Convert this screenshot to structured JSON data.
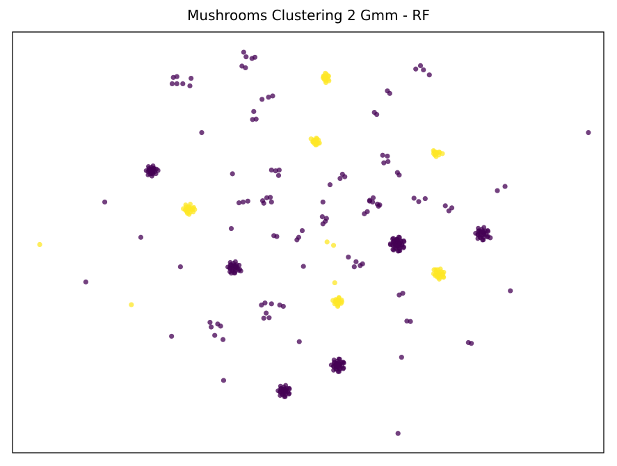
{
  "chart_data": {
    "type": "scatter",
    "title": "Mushrooms Clustering 2 Gmm - RF",
    "xlabel": "",
    "ylabel": "",
    "xlim": [
      0,
      100
    ],
    "ylim": [
      0,
      100
    ],
    "axis_ticks": false,
    "grid": false,
    "legend": false,
    "series": [
      {
        "color": "#440154",
        "points": [
          [
            39.1,
            95.2
          ],
          [
            39.5,
            94.1
          ],
          [
            40.5,
            93.7
          ],
          [
            41.0,
            94.0
          ],
          [
            38.8,
            91.9
          ],
          [
            39.4,
            91.5
          ],
          [
            27.2,
            89.2
          ],
          [
            27.8,
            89.4
          ],
          [
            27.0,
            87.7
          ],
          [
            27.8,
            87.7
          ],
          [
            28.8,
            87.7
          ],
          [
            30.2,
            89.0
          ],
          [
            30.0,
            87.2
          ],
          [
            43.3,
            84.5
          ],
          [
            44.0,
            84.8
          ],
          [
            42.2,
            84.0
          ],
          [
            40.8,
            81.1
          ],
          [
            40.6,
            79.2
          ],
          [
            41.2,
            79.3
          ],
          [
            69.0,
            92.0
          ],
          [
            68.2,
            91.2
          ],
          [
            69.5,
            91.0
          ],
          [
            70.5,
            89.8
          ],
          [
            63.4,
            86.0
          ],
          [
            63.8,
            85.4
          ],
          [
            61.2,
            80.9
          ],
          [
            61.6,
            80.4
          ],
          [
            32.0,
            76.1
          ],
          [
            97.4,
            76.1
          ],
          [
            23.7,
            67.4
          ],
          [
            24.6,
            67.1
          ],
          [
            23.1,
            67.2
          ],
          [
            23.5,
            66.4
          ],
          [
            23.9,
            67.6
          ],
          [
            37.2,
            66.3
          ],
          [
            43.8,
            67.2
          ],
          [
            44.5,
            67.0
          ],
          [
            45.1,
            67.2
          ],
          [
            45.0,
            65.9
          ],
          [
            55.8,
            66.2
          ],
          [
            55.4,
            65.2
          ],
          [
            56.2,
            65.6
          ],
          [
            53.7,
            63.7
          ],
          [
            62.6,
            70.7
          ],
          [
            63.4,
            70.5
          ],
          [
            62.8,
            68.9
          ],
          [
            63.5,
            69.2
          ],
          [
            65.1,
            66.6
          ],
          [
            65.4,
            66.0
          ],
          [
            83.3,
            63.3
          ],
          [
            82.0,
            62.3
          ],
          [
            15.6,
            59.6
          ],
          [
            39.0,
            59.6
          ],
          [
            39.8,
            59.8
          ],
          [
            38.3,
            59.4
          ],
          [
            42.3,
            59.9
          ],
          [
            43.0,
            60.6
          ],
          [
            43.6,
            60.7
          ],
          [
            43.8,
            59.6
          ],
          [
            42.5,
            59.3
          ],
          [
            52.5,
            59.6
          ],
          [
            60.4,
            60.0
          ],
          [
            60.9,
            59.6
          ],
          [
            61.0,
            60.6
          ],
          [
            67.9,
            60.5
          ],
          [
            69.8,
            60.4
          ],
          [
            68.7,
            59.7
          ],
          [
            73.2,
            58.7
          ],
          [
            74.3,
            58.2
          ],
          [
            73.8,
            57.5
          ],
          [
            60.4,
            59.8
          ],
          [
            61.7,
            59.1
          ],
          [
            62.1,
            58.9
          ],
          [
            60.0,
            57.3
          ],
          [
            59.5,
            56.8
          ],
          [
            61.9,
            58.6
          ],
          [
            52.4,
            56.1
          ],
          [
            53.1,
            55.7
          ],
          [
            52.9,
            55.0
          ],
          [
            52.5,
            54.4
          ],
          [
            37.0,
            53.3
          ],
          [
            44.2,
            51.6
          ],
          [
            44.7,
            51.4
          ],
          [
            49.0,
            52.8
          ],
          [
            48.4,
            51.2
          ],
          [
            48.1,
            50.6
          ],
          [
            21.7,
            51.2
          ],
          [
            65.0,
            50.7
          ],
          [
            80.8,
            51.1
          ],
          [
            56.8,
            46.5
          ],
          [
            58.1,
            45.4
          ],
          [
            58.8,
            44.5
          ],
          [
            57.8,
            44.2
          ],
          [
            59.2,
            44.9
          ],
          [
            28.4,
            44.2
          ],
          [
            49.2,
            44.3
          ],
          [
            37.9,
            44.2
          ],
          [
            38.4,
            43.6
          ],
          [
            37.0,
            42.7
          ],
          [
            38.6,
            43.2
          ],
          [
            12.4,
            40.6
          ],
          [
            84.2,
            38.5
          ],
          [
            66.0,
            37.9
          ],
          [
            65.4,
            37.5
          ],
          [
            42.7,
            35.6
          ],
          [
            42.1,
            35.1
          ],
          [
            43.8,
            35.4
          ],
          [
            45.2,
            35.1
          ],
          [
            45.8,
            34.8
          ],
          [
            42.9,
            33.2
          ],
          [
            42.5,
            32.0
          ],
          [
            43.4,
            32.1
          ],
          [
            33.4,
            31.0
          ],
          [
            33.6,
            29.9
          ],
          [
            34.7,
            30.6
          ],
          [
            35.2,
            30.1
          ],
          [
            66.7,
            31.3
          ],
          [
            67.3,
            31.2
          ],
          [
            34.2,
            27.9
          ],
          [
            35.6,
            26.9
          ],
          [
            26.9,
            27.7
          ],
          [
            48.5,
            26.4
          ],
          [
            77.1,
            26.2
          ],
          [
            77.6,
            26.0
          ],
          [
            65.8,
            22.7
          ],
          [
            55.2,
            20.9
          ],
          [
            55.8,
            21.5
          ],
          [
            35.7,
            17.2
          ],
          [
            46.2,
            14.7
          ],
          [
            65.2,
            4.6
          ]
        ]
      },
      {
        "color": "#fde725",
        "points": [
          [
            52.8,
            88.9
          ],
          [
            53.4,
            89.6
          ],
          [
            52.9,
            90.2
          ],
          [
            53.5,
            88.4
          ],
          [
            53.0,
            88.0
          ],
          [
            52.6,
            89.4
          ],
          [
            50.8,
            73.9
          ],
          [
            51.5,
            74.6
          ],
          [
            51.9,
            73.6
          ],
          [
            50.5,
            74.6
          ],
          [
            51.4,
            73.2
          ],
          [
            71.5,
            70.9
          ],
          [
            72.2,
            71.4
          ],
          [
            71.2,
            71.8
          ],
          [
            72.7,
            71.1
          ],
          [
            71.5,
            71.4
          ],
          [
            29.3,
            57.6
          ],
          [
            29.8,
            58.5
          ],
          [
            30.5,
            58.1
          ],
          [
            28.9,
            58.0
          ],
          [
            30.8,
            57.8
          ],
          [
            29.6,
            56.9
          ],
          [
            4.6,
            49.5
          ],
          [
            53.2,
            50.1
          ],
          [
            54.3,
            49.3
          ],
          [
            71.5,
            42.1
          ],
          [
            72.8,
            42.5
          ],
          [
            71.9,
            43.5
          ],
          [
            72.1,
            41.6
          ],
          [
            72.9,
            41.7
          ],
          [
            71.3,
            43.5
          ],
          [
            54.5,
            40.4
          ],
          [
            54.2,
            36.2
          ],
          [
            55.2,
            36.7
          ],
          [
            54.5,
            35.4
          ],
          [
            55.7,
            35.9
          ],
          [
            55.0,
            34.8
          ],
          [
            20.1,
            35.2
          ]
        ]
      }
    ],
    "clusters": [
      {
        "color": "#440154",
        "center": [
          23.5,
          67.0
        ],
        "radius": 0.9,
        "count": 22
      },
      {
        "color": "#440154",
        "center": [
          65.1,
          49.6
        ],
        "radius": 1.2,
        "count": 45
      },
      {
        "color": "#440154",
        "center": [
          79.4,
          52.1
        ],
        "radius": 1.1,
        "count": 30
      },
      {
        "color": "#440154",
        "center": [
          37.4,
          44.1
        ],
        "radius": 1.0,
        "count": 26
      },
      {
        "color": "#440154",
        "center": [
          55.0,
          20.8
        ],
        "radius": 1.1,
        "count": 34
      },
      {
        "color": "#440154",
        "center": [
          45.9,
          14.7
        ],
        "radius": 1.0,
        "count": 30
      },
      {
        "color": "#fde725",
        "center": [
          52.9,
          89.2
        ],
        "radius": 0.6,
        "count": 12
      },
      {
        "color": "#fde725",
        "center": [
          51.2,
          74.0
        ],
        "radius": 0.6,
        "count": 12
      },
      {
        "color": "#fde725",
        "center": [
          71.6,
          71.2
        ],
        "radius": 0.6,
        "count": 10
      },
      {
        "color": "#fde725",
        "center": [
          29.8,
          57.9
        ],
        "radius": 0.9,
        "count": 16
      },
      {
        "color": "#fde725",
        "center": [
          72.1,
          42.5
        ],
        "radius": 0.9,
        "count": 18
      },
      {
        "color": "#fde725",
        "center": [
          55.0,
          36.0
        ],
        "radius": 0.7,
        "count": 12
      }
    ]
  }
}
